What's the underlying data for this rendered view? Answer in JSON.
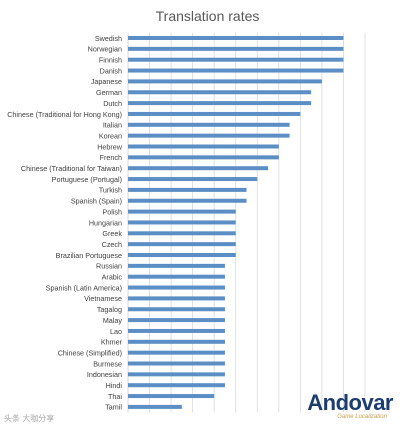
{
  "chart_data": {
    "type": "bar",
    "orientation": "horizontal",
    "title": "Translation rates",
    "categories": [
      "Swedish",
      "Norwegian",
      "Finnish",
      "Danish",
      "Japanese",
      "German",
      "Dutch",
      "Chinese (Traditional for Hong Kong)",
      "Italian",
      "Korean",
      "Hebrew",
      "French",
      "Chinese (Traditional for Taiwan)",
      "Portuguese (Portugal)",
      "Turkish",
      "Spanish (Spain)",
      "Polish",
      "Hungarian",
      "Greek",
      "Czech",
      "Brazilian Portuguese",
      "Russian",
      "Arabic",
      "Spanish (Latin America)",
      "Vietnamese",
      "Tagalog",
      "Malay",
      "Lao",
      "Khmer",
      "Chinese (Simplified)",
      "Burmese",
      "Indonesian",
      "Hindi",
      "Thai",
      "Tamil"
    ],
    "values": [
      0.2,
      0.2,
      0.2,
      0.2,
      0.18,
      0.17,
      0.17,
      0.16,
      0.15,
      0.15,
      0.14,
      0.14,
      0.13,
      0.12,
      0.11,
      0.11,
      0.1,
      0.1,
      0.1,
      0.1,
      0.1,
      0.09,
      0.09,
      0.09,
      0.09,
      0.09,
      0.09,
      0.09,
      0.09,
      0.09,
      0.09,
      0.09,
      0.09,
      0.08,
      0.05
    ],
    "xlim": [
      0,
      0.22
    ],
    "grid": "vertical",
    "bar_color": "#5b8ec4",
    "grid_color": "#d9d9d9"
  },
  "brand": {
    "name": "Andovar",
    "tagline": "Game Localization"
  },
  "watermark": "头条 大咖分享"
}
